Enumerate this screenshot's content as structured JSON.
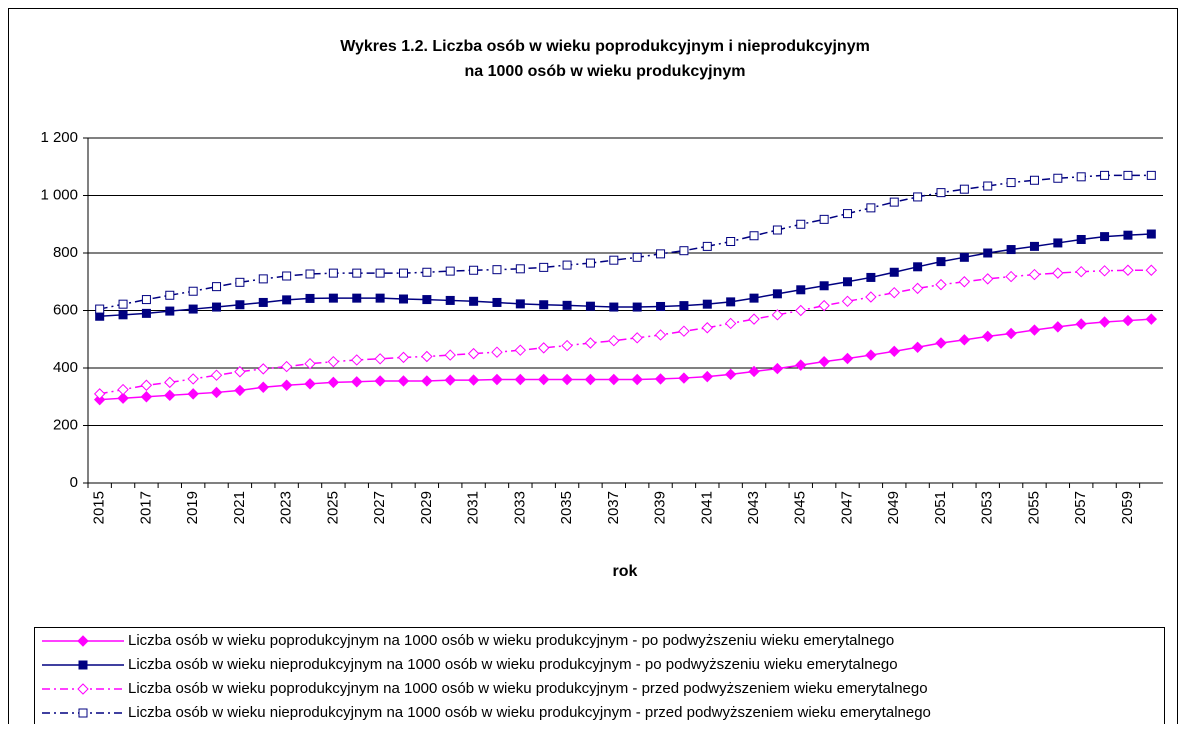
{
  "chart_data": {
    "type": "line",
    "title": [
      "Wykres 1.2. Liczba osób w wieku poprodukcyjnym i nieprodukcyjnym",
      "na 1000 osób w wieku produkcyjnym"
    ],
    "x_label": "rok",
    "categories": [
      "2015",
      null,
      "2017",
      null,
      "2019",
      null,
      "2021",
      null,
      "2023",
      null,
      "2025",
      null,
      "2027",
      null,
      "2029",
      null,
      "2031",
      null,
      "2033",
      null,
      "2035",
      null,
      "2037",
      null,
      "2039",
      null,
      "2041",
      null,
      "2043",
      null,
      "2045",
      null,
      "2047",
      null,
      "2049",
      null,
      "2051",
      null,
      "2053",
      null,
      "2055",
      null,
      "2057",
      null,
      "2059",
      null
    ],
    "ylim": [
      0,
      1200
    ],
    "yticks": [
      0,
      200,
      400,
      600,
      800,
      {
        "value": 1000,
        "label": "1 000"
      },
      {
        "value": 1200,
        "label": "1 200"
      }
    ],
    "grid": true,
    "legend": "bottom",
    "series": [
      {
        "name": "Liczba osób w wieku poprodukcyjnym na 1000 osób w wieku produkcyjnym - po podwyższeniu wieku emerytalnego",
        "color": "#ff00ff",
        "marker": "diamond",
        "filled": true,
        "dashed": false,
        "values": [
          290,
          295,
          300,
          305,
          310,
          315,
          322,
          333,
          340,
          345,
          350,
          352,
          355,
          355,
          355,
          358,
          358,
          360,
          360,
          360,
          360,
          360,
          360,
          360,
          362,
          365,
          370,
          378,
          388,
          398,
          410,
          422,
          433,
          445,
          458,
          472,
          487,
          498,
          510,
          520,
          532,
          543,
          553,
          560,
          565,
          570
        ]
      },
      {
        "name": "Liczba osób w wieku nieprodukcyjnym na 1000 osób w wieku produkcyjnym - po podwyższeniu wieku emerytalnego",
        "color": "#000080",
        "marker": "square",
        "filled": true,
        "dashed": false,
        "values": [
          580,
          585,
          590,
          598,
          605,
          612,
          620,
          628,
          637,
          642,
          643,
          643,
          643,
          640,
          638,
          635,
          632,
          628,
          623,
          620,
          618,
          615,
          612,
          612,
          614,
          617,
          622,
          630,
          643,
          658,
          672,
          686,
          700,
          715,
          733,
          752,
          770,
          785,
          800,
          812,
          823,
          835,
          847,
          857,
          862,
          866
        ]
      },
      {
        "name": "Liczba osób w wieku poprodukcyjnym na 1000 osób w wieku produkcyjnym - przed podwyższeniem wieku emerytalnego",
        "color": "#ff00ff",
        "marker": "diamond",
        "filled": false,
        "dashed": true,
        "values": [
          310,
          325,
          340,
          350,
          362,
          375,
          387,
          397,
          405,
          415,
          422,
          428,
          432,
          437,
          440,
          445,
          450,
          455,
          462,
          470,
          478,
          487,
          495,
          505,
          515,
          528,
          540,
          555,
          570,
          585,
          600,
          617,
          632,
          647,
          662,
          677,
          690,
          700,
          710,
          718,
          725,
          730,
          735,
          738,
          740,
          740
        ]
      },
      {
        "name": "Liczba osób w wieku nieprodukcyjnym na 1000 osób w wieku produkcyjnym - przed podwyższeniem wieku emerytalnego",
        "color": "#000080",
        "marker": "square",
        "filled": false,
        "dashed": true,
        "values": [
          605,
          622,
          638,
          653,
          667,
          683,
          698,
          710,
          720,
          727,
          730,
          730,
          730,
          730,
          733,
          737,
          740,
          742,
          745,
          750,
          758,
          765,
          775,
          785,
          797,
          808,
          823,
          840,
          860,
          880,
          900,
          917,
          937,
          957,
          977,
          995,
          1010,
          1022,
          1033,
          1045,
          1053,
          1060,
          1065,
          1070,
          1070,
          1070
        ]
      }
    ]
  }
}
